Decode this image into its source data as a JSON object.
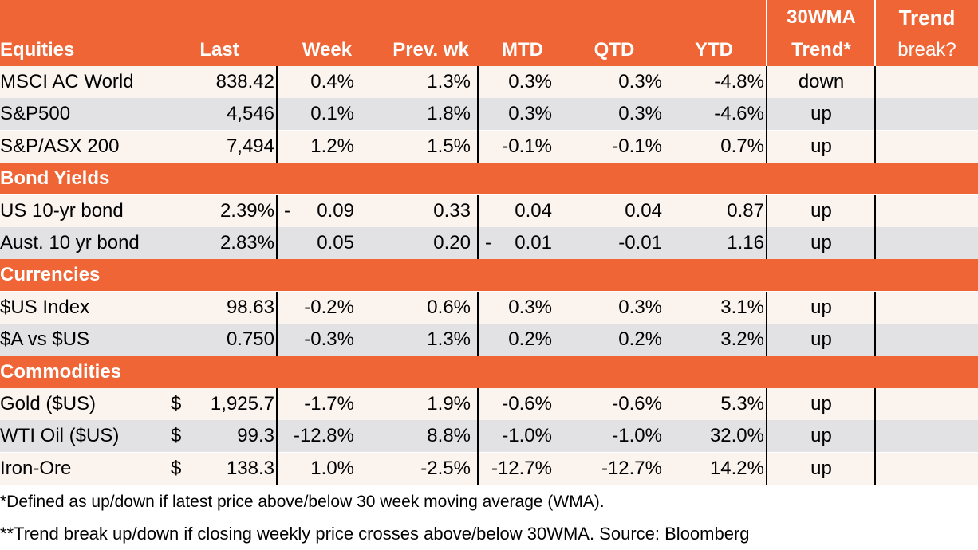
{
  "header": {
    "top_wma": "30WMA",
    "top_trend": "Trend",
    "cols": [
      "Equities",
      "Last",
      "Week",
      "Prev. wk",
      "MTD",
      "QTD",
      "YTD",
      "Trend*",
      "break?"
    ]
  },
  "sections": [
    {
      "title": "Equities",
      "rows": [
        {
          "name": "MSCI AC World",
          "dollar": "",
          "last": "838.42",
          "week_prefix": "",
          "week": "0.4%",
          "prev": "1.3%",
          "mtd_prefix": "",
          "mtd": "0.3%",
          "qtd": "0.3%",
          "ytd": "-4.8%",
          "trend": "down"
        },
        {
          "name": "S&P500",
          "dollar": "",
          "last": "4,546",
          "week_prefix": "",
          "week": "0.1%",
          "prev": "1.8%",
          "mtd_prefix": "",
          "mtd": "0.3%",
          "qtd": "0.3%",
          "ytd": "-4.6%",
          "trend": "up"
        },
        {
          "name": "S&P/ASX 200",
          "dollar": "",
          "last": "7,494",
          "week_prefix": "",
          "week": "1.2%",
          "prev": "1.5%",
          "mtd_prefix": "",
          "mtd": "-0.1%",
          "qtd": "-0.1%",
          "ytd": "0.7%",
          "trend": "up"
        }
      ]
    },
    {
      "title": "Bond Yields",
      "rows": [
        {
          "name": "US 10-yr bond",
          "dollar": "",
          "last": "2.39%",
          "week_prefix": "-",
          "week": "0.09",
          "prev": "0.33",
          "mtd_prefix": "",
          "mtd": "0.04",
          "qtd": "0.04",
          "ytd": "0.87",
          "trend": "up"
        },
        {
          "name": "Aust. 10 yr bond",
          "dollar": "",
          "last": "2.83%",
          "week_prefix": "",
          "week": "0.05",
          "prev": "0.20",
          "mtd_prefix": "-",
          "mtd": "0.01",
          "qtd": "-0.01",
          "ytd": "1.16",
          "trend": "up"
        }
      ]
    },
    {
      "title": "Currencies",
      "rows": [
        {
          "name": "$US Index",
          "dollar": "",
          "last": "98.63",
          "week_prefix": "",
          "week": "-0.2%",
          "prev": "0.6%",
          "mtd_prefix": "",
          "mtd": "0.3%",
          "qtd": "0.3%",
          "ytd": "3.1%",
          "trend": "up"
        },
        {
          "name": "$A vs $US",
          "dollar": "",
          "last": "0.750",
          "week_prefix": "",
          "week": "-0.3%",
          "prev": "1.3%",
          "mtd_prefix": "",
          "mtd": "0.2%",
          "qtd": "0.2%",
          "ytd": "3.2%",
          "trend": "up"
        }
      ]
    },
    {
      "title": "Commodities",
      "rows": [
        {
          "name": "Gold ($US)",
          "dollar": "$",
          "last": "1,925.7",
          "week_prefix": "",
          "week": "-1.7%",
          "prev": "1.9%",
          "mtd_prefix": "",
          "mtd": "-0.6%",
          "qtd": "-0.6%",
          "ytd": "5.3%",
          "trend": "up"
        },
        {
          "name": "WTI Oil ($US)",
          "dollar": "$",
          "last": "99.3",
          "week_prefix": "",
          "week": "-12.8%",
          "prev": "8.8%",
          "mtd_prefix": "",
          "mtd": "-1.0%",
          "qtd": "-1.0%",
          "ytd": "32.0%",
          "trend": "up"
        },
        {
          "name": "Iron-Ore",
          "dollar": "$",
          "last": "138.3",
          "week_prefix": "",
          "week": "1.0%",
          "prev": "-2.5%",
          "mtd_prefix": "",
          "mtd": "-12.7%",
          "qtd": "-12.7%",
          "ytd": "14.2%",
          "trend": "up"
        }
      ]
    }
  ],
  "footnotes": [
    "*Defined as up/down if latest price above/below 30 week moving average (WMA).",
    "**Trend break up/down if closing weekly price crosses above/below 30WMA.  Source: Bloomberg"
  ],
  "colors": {
    "header": "#ef6535",
    "row_light": "#fbf3ee",
    "row_grey": "#e2e2e5"
  }
}
